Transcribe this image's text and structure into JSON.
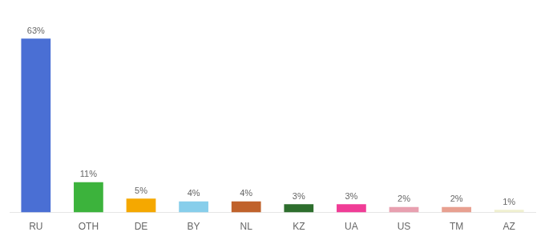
{
  "chart_data": {
    "type": "bar",
    "categories": [
      "RU",
      "OTH",
      "DE",
      "BY",
      "NL",
      "KZ",
      "UA",
      "US",
      "TM",
      "AZ"
    ],
    "values": [
      63,
      11,
      5,
      4,
      4,
      3,
      3,
      2,
      2,
      1
    ],
    "value_labels": [
      "63%",
      "11%",
      "5%",
      "4%",
      "4%",
      "3%",
      "3%",
      "2%",
      "2%",
      "1%"
    ],
    "colors": [
      "#4a6fd4",
      "#3cb33c",
      "#f5a800",
      "#87ceeb",
      "#c0622b",
      "#2d6e2d",
      "#f03c96",
      "#e8a0b0",
      "#e8a090",
      "#f0f0d0"
    ],
    "ylim": [
      0,
      70
    ],
    "data_labels": true,
    "grid": false,
    "tick_labels": "x"
  }
}
